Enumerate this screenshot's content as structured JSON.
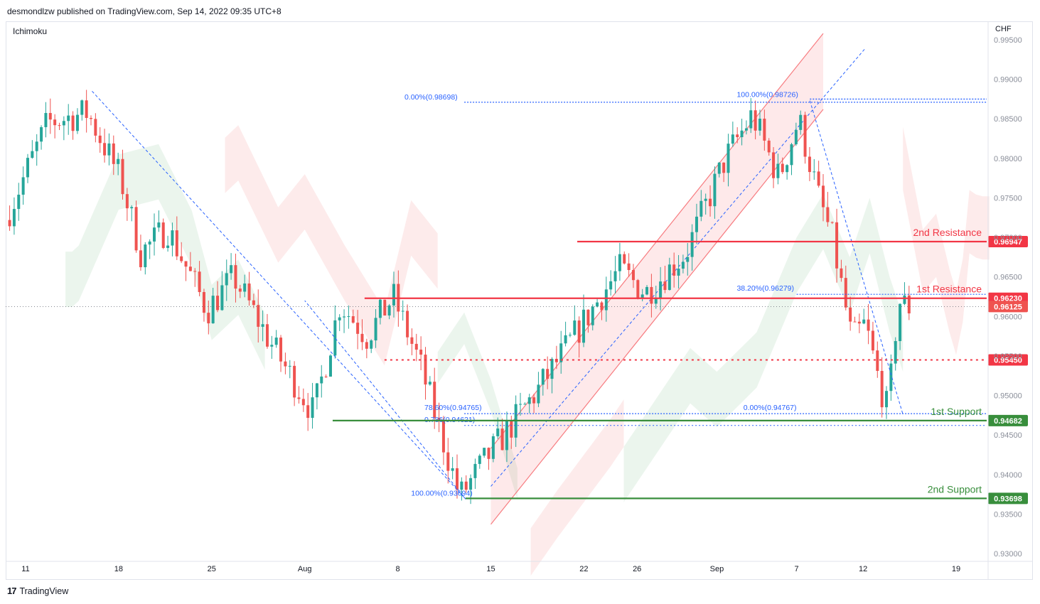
{
  "header": {
    "published": "desmondlzw published on TradingView.com, Sep 14, 2022 09:35 UTC+8",
    "indicator": "Ichimoku",
    "currency": "CHF"
  },
  "footer": {
    "brand": "TradingView",
    "logo": "17"
  },
  "colors": {
    "up": "#26a69a",
    "down": "#ef5350",
    "resistance": "#f23645",
    "support": "#388e3c",
    "fib": "#2962ff",
    "cloud_green": "#e7f3ea",
    "cloud_red": "#fde7e7",
    "channel": "#f77c80"
  },
  "chart_data": {
    "type": "candlestick",
    "symbol_currency": "CHF",
    "ylim": [
      0.9265,
      0.9975
    ],
    "y_ticks": [
      "0.99500",
      "0.99000",
      "0.98500",
      "0.98000",
      "0.97500",
      "0.97000",
      "0.96500",
      "0.96000",
      "0.95500",
      "0.95000",
      "0.94500",
      "0.94000",
      "0.93500",
      "0.93000"
    ],
    "x_ticks": [
      {
        "label": "11",
        "day": 0
      },
      {
        "label": "18",
        "day": 7
      },
      {
        "label": "25",
        "day": 14
      },
      {
        "label": "Aug",
        "day": 21
      },
      {
        "label": "8",
        "day": 28
      },
      {
        "label": "15",
        "day": 35
      },
      {
        "label": "22",
        "day": 42
      },
      {
        "label": "26",
        "day": 46
      },
      {
        "label": "Sep",
        "day": 52
      },
      {
        "label": "7",
        "day": 58
      },
      {
        "label": "12",
        "day": 63
      },
      {
        "label": "19",
        "day": 70
      }
    ],
    "price_path": [
      {
        "day": -1.2,
        "price": 0.9722
      },
      {
        "day": 2,
        "price": 0.9845
      },
      {
        "day": 5,
        "price": 0.9858
      },
      {
        "day": 7.5,
        "price": 0.9774
      },
      {
        "day": 9,
        "price": 0.968
      },
      {
        "day": 11,
        "price": 0.9712
      },
      {
        "day": 14,
        "price": 0.9608
      },
      {
        "day": 16,
        "price": 0.965
      },
      {
        "day": 19,
        "price": 0.956
      },
      {
        "day": 22,
        "price": 0.9478
      },
      {
        "day": 24,
        "price": 0.9617
      },
      {
        "day": 26,
        "price": 0.9575
      },
      {
        "day": 28,
        "price": 0.9625
      },
      {
        "day": 30,
        "price": 0.954
      },
      {
        "day": 33,
        "price": 0.9372
      },
      {
        "day": 35,
        "price": 0.942
      },
      {
        "day": 39,
        "price": 0.951
      },
      {
        "day": 42,
        "price": 0.9585
      },
      {
        "day": 45,
        "price": 0.966
      },
      {
        "day": 47,
        "price": 0.963
      },
      {
        "day": 50,
        "price": 0.968
      },
      {
        "day": 53,
        "price": 0.98
      },
      {
        "day": 55,
        "price": 0.9855
      },
      {
        "day": 57,
        "price": 0.9775
      },
      {
        "day": 58.5,
        "price": 0.985
      },
      {
        "day": 60,
        "price": 0.975
      },
      {
        "day": 61,
        "price": 0.97
      },
      {
        "day": 62.5,
        "price": 0.957
      },
      {
        "day": 63.5,
        "price": 0.959
      },
      {
        "day": 64.5,
        "price": 0.952
      },
      {
        "day": 65.2,
        "price": 0.948
      },
      {
        "day": 66,
        "price": 0.962
      },
      {
        "day": 66.7,
        "price": 0.9612
      }
    ],
    "levels": [
      {
        "name": "2nd Resistance",
        "value": "0.96947",
        "type": "resistance"
      },
      {
        "name": "1st Resistance",
        "value": "0.96230",
        "type": "resistance"
      },
      {
        "name": "",
        "value": "0.96125",
        "type": "last"
      },
      {
        "name": "",
        "value": "0.95450",
        "type": "pivot"
      },
      {
        "name": "1st Support",
        "value": "0.94682",
        "type": "support"
      },
      {
        "name": "2nd Support",
        "value": "0.93698",
        "type": "support"
      }
    ],
    "fib_labels": [
      {
        "text": "0.00%(0.98698)",
        "price": 0.987,
        "day": 28.5
      },
      {
        "text": "100.00%(0.98726)",
        "price": 0.9873,
        "day": 53.5
      },
      {
        "text": "38.20%(0.96279)",
        "price": 0.9628,
        "day": 53.5
      },
      {
        "text": "78.60%(0.94765)",
        "price": 0.9477,
        "day": 30
      },
      {
        "text": "0.786(0.94621)",
        "price": 0.9462,
        "day": 30
      },
      {
        "text": "0.00%(0.94767)",
        "price": 0.9477,
        "day": 54
      },
      {
        "text": "100.00%(0.93694)",
        "price": 0.9369,
        "day": 29
      }
    ],
    "channel": {
      "start": {
        "day": 35,
        "price": 0.9385
      },
      "end": {
        "day": 60,
        "price": 0.991
      },
      "upper_offset": 0.0048,
      "lower_offset": -0.0048
    },
    "grid": false,
    "legend": "none"
  }
}
